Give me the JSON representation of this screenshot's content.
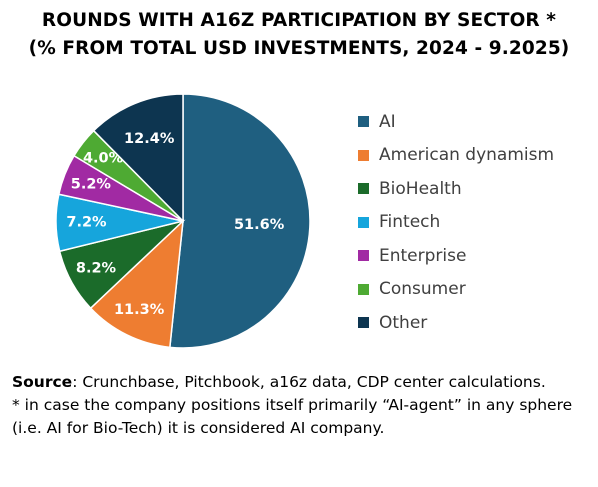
{
  "chart_data": {
    "type": "pie",
    "title_line1": "ROUNDS WITH A16Z PARTICIPATION BY SECTOR *",
    "title_line2": "(% FROM TOTAL USD INVESTMENTS, 2024 - 9.2025)",
    "slices": [
      {
        "name": "AI",
        "value": 51.6,
        "label": "51.6%",
        "color": "#1f5f80"
      },
      {
        "name": "American dynamism",
        "value": 11.3,
        "label": "11.3%",
        "color": "#ee7d31"
      },
      {
        "name": "BioHealth",
        "value": 8.2,
        "label": "8.2%",
        "color": "#1b6b2a"
      },
      {
        "name": "Fintech",
        "value": 7.2,
        "label": "7.2%",
        "color": "#16a5dc"
      },
      {
        "name": "Enterprise",
        "value": 5.2,
        "label": "5.2%",
        "color": "#a12aa3"
      },
      {
        "name": "Consumer",
        "value": 4.0,
        "label": "4.0%",
        "color": "#4eaa33"
      },
      {
        "name": "Other",
        "value": 12.4,
        "label": "12.4%",
        "color": "#0d3550"
      }
    ],
    "legend_placement": "right"
  },
  "source": {
    "key": "Source",
    "text": ": Crunchbase, Pitchbook, a16z data, CDP center calculations.",
    "note": "* in case the company positions itself primarily  “AI-agent” in any sphere (i.e. AI for Bio-Tech) it is considered AI company."
  }
}
